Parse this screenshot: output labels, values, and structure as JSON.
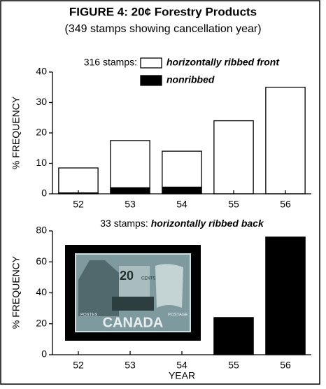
{
  "chart_data": [
    {
      "type": "bar",
      "stacked": true,
      "title": "FIGURE 4: 20¢ Forestry Products",
      "subtitle": "(349 stamps showing cancellation year)",
      "legend_title": "316 stamps:",
      "ylabel": "% FREQUENCY",
      "categories": [
        "52",
        "53",
        "54",
        "55",
        "56"
      ],
      "series": [
        {
          "name": "nonribbed",
          "color": "#000000",
          "values": [
            0.3,
            2,
            2.2,
            0,
            0
          ]
        },
        {
          "name": "horizontally ribbed front",
          "color": "#ffffff",
          "values": [
            8.2,
            15.5,
            11.8,
            24,
            35
          ]
        }
      ],
      "ylim": [
        0,
        40
      ],
      "yticks": [
        0,
        10,
        20,
        30,
        40
      ]
    },
    {
      "type": "bar",
      "stacked": true,
      "title_prefix": "33 stamps:",
      "ylabel": "% FREQUENCY",
      "xlabel": "YEAR",
      "categories": [
        "52",
        "53",
        "54",
        "55",
        "56"
      ],
      "series": [
        {
          "name": "horizontally ribbed back",
          "color": "#000000",
          "values": [
            0,
            0,
            0,
            24,
            76
          ]
        }
      ],
      "ylim": [
        0,
        80
      ],
      "yticks": [
        0,
        20,
        40,
        60,
        80
      ],
      "inset": {
        "denomination": "20",
        "cents": "CENTS",
        "left": "POSTES",
        "right": "POSTAGE",
        "country": "CANADA"
      }
    }
  ]
}
